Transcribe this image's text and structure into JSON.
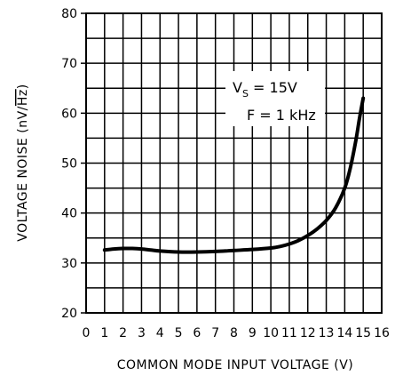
{
  "chart_data": {
    "type": "line",
    "xlabel": "COMMON MODE INPUT VOLTAGE (V)",
    "ylabel_prefix": "VOLTAGE NOISE (nV/",
    "ylabel_radicand": "Hz",
    "ylabel_suffix": ")",
    "xlim": [
      0,
      16
    ],
    "ylim": [
      20,
      80
    ],
    "xticks": [
      "0",
      "1",
      "2",
      "3",
      "4",
      "5",
      "6",
      "7",
      "8",
      "9",
      "10",
      "11",
      "12",
      "13",
      "14",
      "15",
      "16"
    ],
    "yticks": [
      "20",
      "30",
      "40",
      "50",
      "60",
      "70",
      "80"
    ],
    "grid": true,
    "annotations": {
      "line1_prefix": "V",
      "line1_sub": "S",
      "line1_rest": " = 15V",
      "line2": "F = 1 kHz"
    },
    "series": [
      {
        "x": [
          1,
          1.5,
          2,
          2.5,
          3,
          3.5,
          4,
          5,
          6,
          7,
          8,
          9,
          10,
          10.5,
          11,
          11.5,
          12,
          12.5,
          13,
          13.5,
          14,
          14.3,
          14.6,
          14.8,
          15
        ],
        "y": [
          32.6,
          32.8,
          32.9,
          32.9,
          32.8,
          32.6,
          32.4,
          32.2,
          32.2,
          32.3,
          32.5,
          32.7,
          33.0,
          33.3,
          33.8,
          34.5,
          35.5,
          36.8,
          38.5,
          41.0,
          45.0,
          49.0,
          54.5,
          59.0,
          63.0
        ]
      }
    ]
  }
}
